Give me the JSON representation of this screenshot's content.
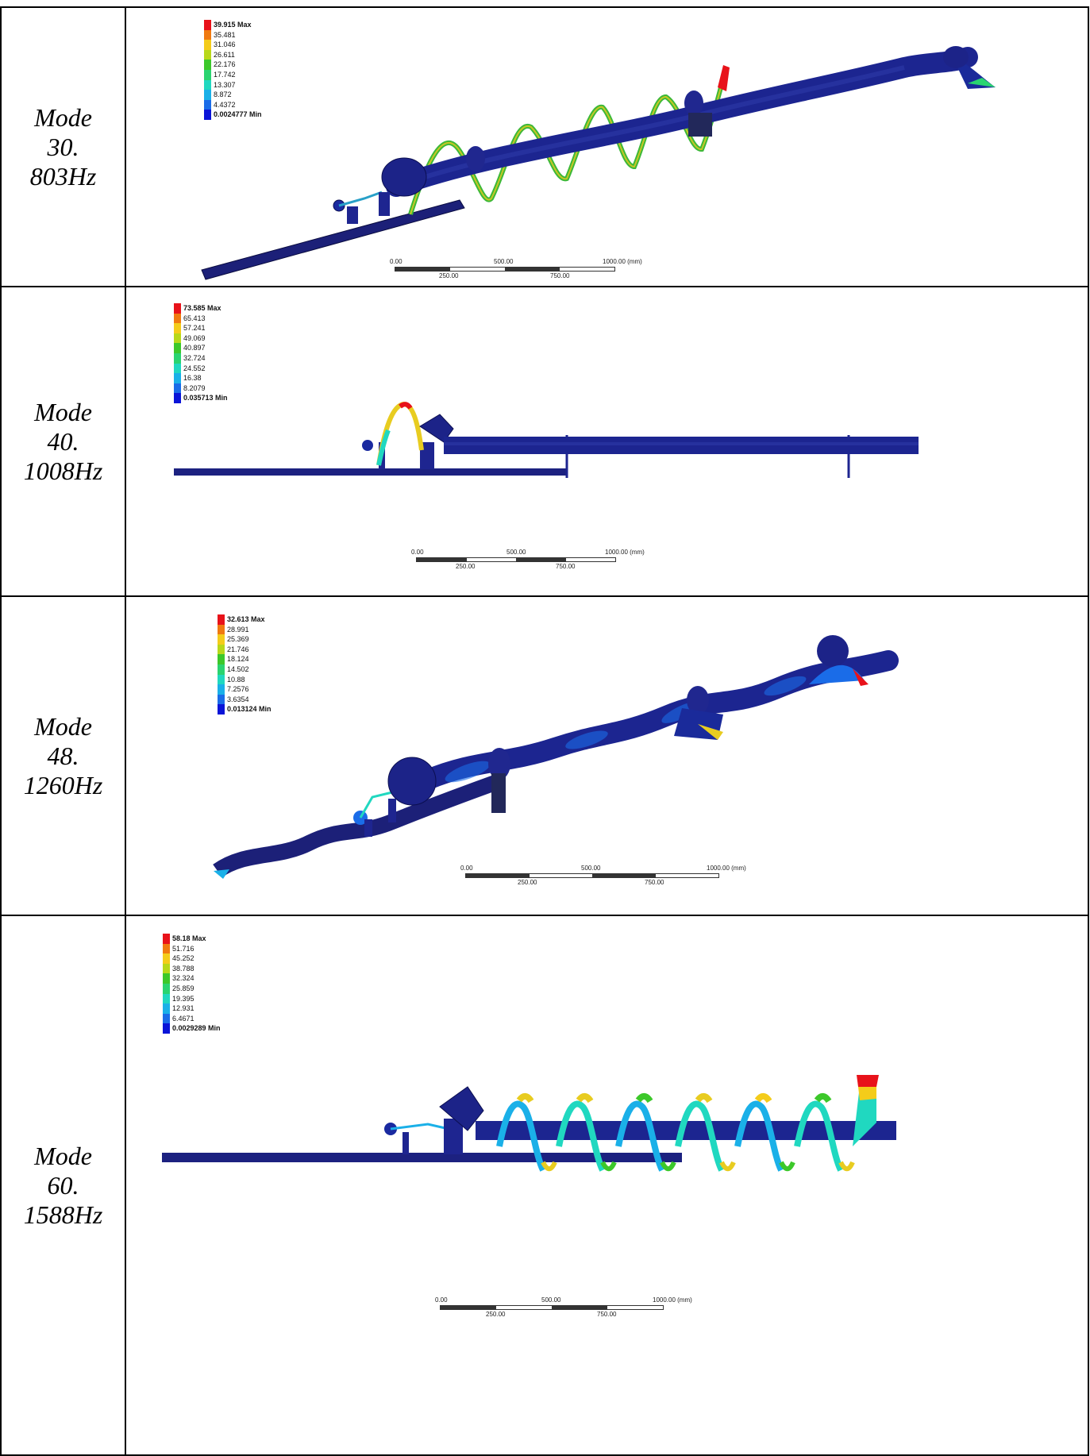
{
  "legend_colors": [
    "#e8121a",
    "#f07a10",
    "#f4cc1a",
    "#b8d81a",
    "#3cc82a",
    "#2ad470",
    "#20d8c0",
    "#1ab0e8",
    "#1a6ce8",
    "#0a14d8"
  ],
  "scale_labels": {
    "l0": "0.00",
    "l500": "500.00",
    "l1000": "1000.00 (mm)",
    "l250": "250.00",
    "l750": "750.00"
  },
  "modes": [
    {
      "line1": "Mode",
      "line2": "30.",
      "line3": "803Hz",
      "legend": {
        "max": "39.915 Max",
        "v": [
          "35.481",
          "31.046",
          "26.611",
          "22.176",
          "17.742",
          "13.307",
          "8.872",
          "4.4372"
        ],
        "min": "0.0024777 Min"
      }
    },
    {
      "line1": "Mode",
      "line2": "40.",
      "line3": "1008Hz",
      "legend": {
        "max": "73.585 Max",
        "v": [
          "65.413",
          "57.241",
          "49.069",
          "40.897",
          "32.724",
          "24.552",
          "16.38",
          "8.2079"
        ],
        "min": "0.035713 Min"
      }
    },
    {
      "line1": "Mode",
      "line2": "48.",
      "line3": "1260Hz",
      "legend": {
        "max": "32.613 Max",
        "v": [
          "28.991",
          "25.369",
          "21.746",
          "18.124",
          "14.502",
          "10.88",
          "7.2576",
          "3.6354"
        ],
        "min": "0.013124 Min"
      }
    },
    {
      "line1": "Mode",
      "line2": "60.",
      "line3": "1588Hz",
      "legend": {
        "max": "58.18 Max",
        "v": [
          "51.716",
          "45.252",
          "38.788",
          "32.324",
          "25.859",
          "19.395",
          "12.931",
          "6.4671"
        ],
        "min": "0.0029289 Min"
      }
    }
  ]
}
